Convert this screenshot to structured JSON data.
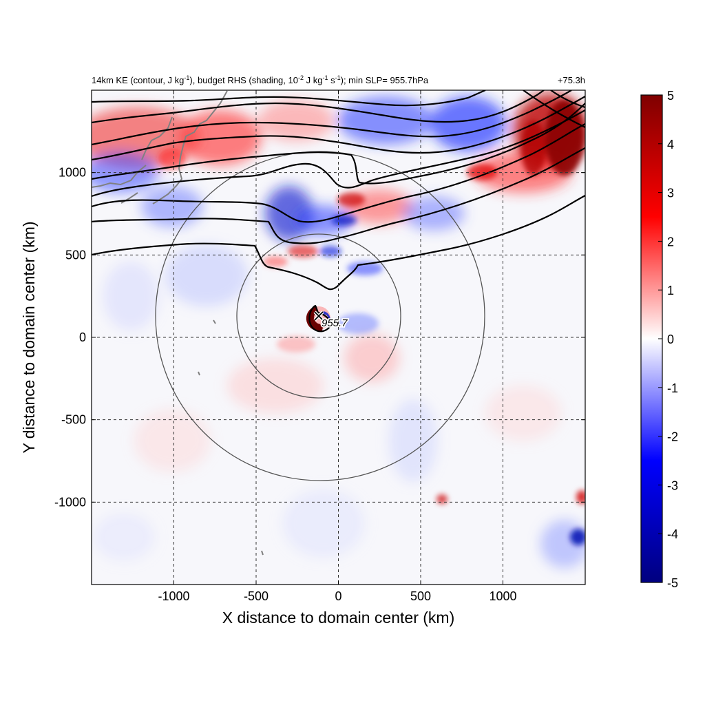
{
  "figure": {
    "title_parts": {
      "p1": "14km KE (contour, J kg",
      "p1_sup": "-1",
      "p2": "), budget RHS (shading, 10",
      "p2_sup": "-2",
      "p3": " J kg",
      "p3_sup": "-1",
      "p4": " s",
      "p4_sup": "-1",
      "p5": "); min SLP= 955.7hPa"
    },
    "time_label": "+75.3h",
    "storm_label": "955.7"
  },
  "chart_data": {
    "type": "heatmap",
    "xlabel": "X distance to domain center (km)",
    "ylabel": "Y distance to domain center (km)",
    "xlim": [
      -1500,
      1500
    ],
    "ylim": [
      -1500,
      1500
    ],
    "xticks": [
      -1000,
      -500,
      0,
      500,
      1000
    ],
    "yticks": [
      -1000,
      -500,
      0,
      500,
      1000
    ],
    "xtick_labels": [
      "-1000",
      "-500",
      "0",
      "500",
      "1000"
    ],
    "ytick_labels": [
      "-1000",
      "-500",
      "0",
      "500",
      "1000"
    ],
    "grid": true,
    "colorbar": {
      "range": [
        -5,
        5
      ],
      "ticks": [
        5,
        4,
        3,
        2,
        1,
        0,
        -1,
        -2,
        -3,
        -4,
        -5
      ],
      "tick_labels": [
        "5",
        "4",
        "3",
        "2",
        "1",
        "0",
        "-1",
        "-2",
        "-3",
        "-4",
        "-5"
      ],
      "colors": [
        "#00007f",
        "#0000ff",
        "#ffffff",
        "#ff0000",
        "#7f0000"
      ]
    },
    "storm_center": {
      "x": -110,
      "y": 135,
      "min_slp": 955.7
    },
    "range_rings_km": [
      500,
      1000
    ],
    "ring_color": "#555555",
    "coast_color": "#808080",
    "contour_color": "#000000"
  }
}
